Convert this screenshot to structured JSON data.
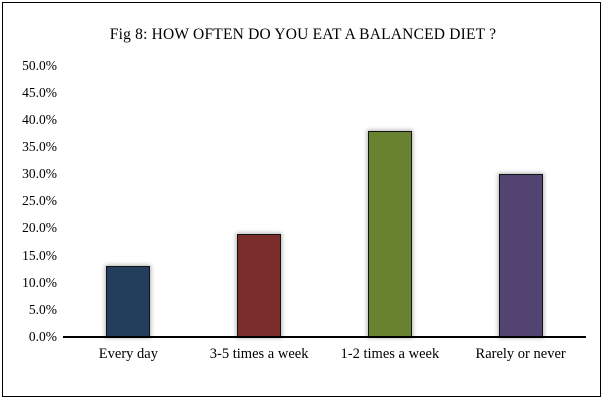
{
  "figure": {
    "title": "Fig 8: HOW OFTEN DO YOU EAT A BALANCED DIET ?"
  },
  "chart_data": {
    "type": "bar",
    "title": "Fig 8: HOW OFTEN DO YOU EAT A BALANCED DIET ?",
    "categories": [
      "Every day",
      "3-5 times a week",
      "1-2 times a week",
      "Rarely or never"
    ],
    "values": [
      13.0,
      19.0,
      38.0,
      30.0
    ],
    "unit": "%",
    "xlabel": "",
    "ylabel": "",
    "ylim": [
      0,
      50
    ],
    "ytick_step": 5,
    "ytick_labels": [
      "0.0%",
      "5.0%",
      "10.0%",
      "15.0%",
      "20.0%",
      "25.0%",
      "30.0%",
      "35.0%",
      "40.0%",
      "45.0%",
      "50.0%"
    ],
    "grid": false,
    "legend": false,
    "bar_colors": [
      "#233E5C",
      "#7B2D2B",
      "#68822F",
      "#534372"
    ],
    "bar_border_color": "#141414",
    "axis_color": "#000000",
    "frame_border_color": "#000000",
    "background_color": "#FFFFFF"
  }
}
